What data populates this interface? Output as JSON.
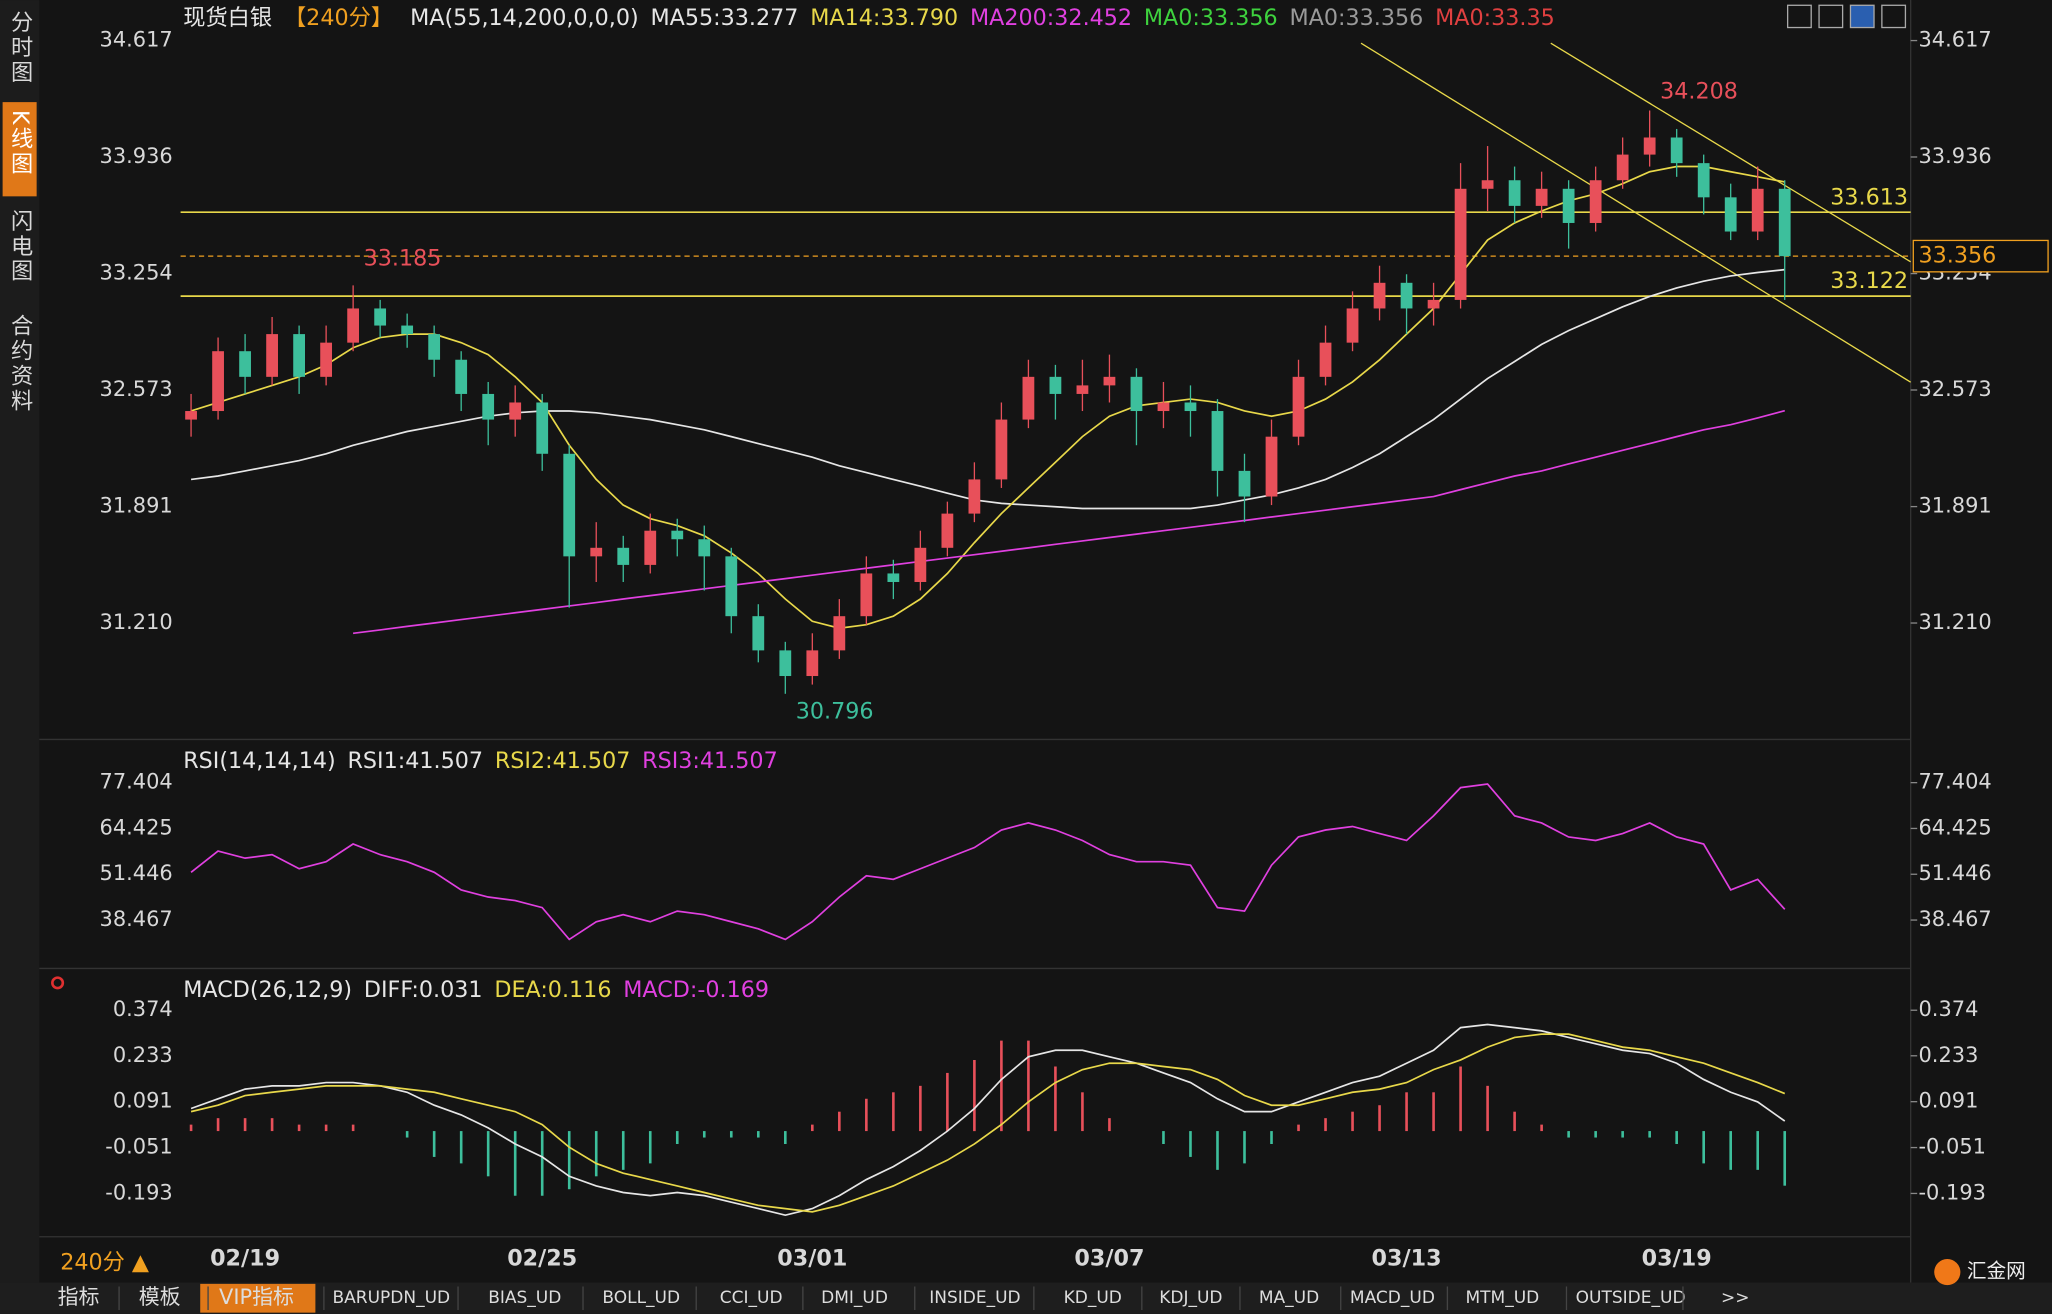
{
  "ui": {
    "tabs": [
      "分时图",
      "K线图",
      "闪电图",
      "合约资料"
    ],
    "period_button": "240分 ▲",
    "logo": "汇金网",
    "toolbar": [
      "指标",
      "模板",
      "VIP指标",
      "BARUPDN_UD",
      "BIAS_UD",
      "BOLL_UD",
      "CCI_UD",
      "DMI_UD",
      "INSIDE_UD",
      "KD_UD",
      "KDJ_UD",
      "MA_UD",
      "MACD_UD",
      "MTM_UD",
      "OUTSIDE_UD",
      ">>"
    ]
  },
  "chart_data": [
    {
      "type": "candlestick",
      "title": "现货白银",
      "period": "【240分】",
      "indicator": "MA(55,14,200,0,0,0)",
      "up_color": "#e8505a",
      "down_color": "#3dbf9c",
      "categories": [
        null,
        null,
        "02/19",
        null,
        null,
        null,
        null,
        null,
        null,
        null,
        null,
        null,
        null,
        "02/25",
        null,
        null,
        null,
        null,
        null,
        null,
        null,
        null,
        null,
        "03/01",
        null,
        null,
        null,
        null,
        null,
        null,
        null,
        null,
        null,
        null,
        "03/07",
        null,
        null,
        null,
        null,
        null,
        null,
        null,
        null,
        null,
        null,
        "03/13",
        null,
        null,
        null,
        null,
        null,
        null,
        null,
        null,
        null,
        "03/19",
        null,
        null,
        null,
        null
      ],
      "candles": [
        [
          32.4,
          32.55,
          32.3,
          32.45
        ],
        [
          32.45,
          32.88,
          32.4,
          32.8
        ],
        [
          32.8,
          32.9,
          32.55,
          32.65
        ],
        [
          32.65,
          33.0,
          32.6,
          32.9
        ],
        [
          32.9,
          32.95,
          32.55,
          32.65
        ],
        [
          32.65,
          32.95,
          32.6,
          32.85
        ],
        [
          32.85,
          33.185,
          32.8,
          33.05
        ],
        [
          33.05,
          33.1,
          32.88,
          32.95
        ],
        [
          32.95,
          33.02,
          32.82,
          32.9
        ],
        [
          32.9,
          32.95,
          32.65,
          32.75
        ],
        [
          32.75,
          32.8,
          32.45,
          32.55
        ],
        [
          32.55,
          32.62,
          32.25,
          32.4
        ],
        [
          32.4,
          32.6,
          32.3,
          32.5
        ],
        [
          32.5,
          32.55,
          32.1,
          32.2
        ],
        [
          32.2,
          32.25,
          31.3,
          31.6
        ],
        [
          31.6,
          31.8,
          31.45,
          31.65
        ],
        [
          31.65,
          31.72,
          31.45,
          31.55
        ],
        [
          31.55,
          31.85,
          31.5,
          31.75
        ],
        [
          31.75,
          31.82,
          31.6,
          31.7
        ],
        [
          31.7,
          31.78,
          31.4,
          31.6
        ],
        [
          31.6,
          31.65,
          31.15,
          31.25
        ],
        [
          31.25,
          31.32,
          30.98,
          31.05
        ],
        [
          31.05,
          31.1,
          30.796,
          30.9
        ],
        [
          30.9,
          31.15,
          30.85,
          31.05
        ],
        [
          31.05,
          31.35,
          31.0,
          31.25
        ],
        [
          31.25,
          31.6,
          31.2,
          31.5
        ],
        [
          31.5,
          31.58,
          31.35,
          31.45
        ],
        [
          31.45,
          31.75,
          31.4,
          31.65
        ],
        [
          31.65,
          31.92,
          31.6,
          31.85
        ],
        [
          31.85,
          32.15,
          31.8,
          32.05
        ],
        [
          32.05,
          32.5,
          32.0,
          32.4
        ],
        [
          32.4,
          32.75,
          32.35,
          32.65
        ],
        [
          32.65,
          32.72,
          32.4,
          32.55
        ],
        [
          32.55,
          32.75,
          32.45,
          32.6
        ],
        [
          32.6,
          32.78,
          32.5,
          32.65
        ],
        [
          32.65,
          32.7,
          32.25,
          32.45
        ],
        [
          32.45,
          32.62,
          32.35,
          32.5
        ],
        [
          32.5,
          32.6,
          32.3,
          32.45
        ],
        [
          32.45,
          32.52,
          31.95,
          32.1
        ],
        [
          32.1,
          32.2,
          31.8,
          31.95
        ],
        [
          31.95,
          32.4,
          31.9,
          32.3
        ],
        [
          32.3,
          32.75,
          32.25,
          32.65
        ],
        [
          32.65,
          32.95,
          32.6,
          32.85
        ],
        [
          32.85,
          33.15,
          32.8,
          33.05
        ],
        [
          33.05,
          33.3,
          32.98,
          33.2
        ],
        [
          33.2,
          33.25,
          32.9,
          33.05
        ],
        [
          33.05,
          33.2,
          32.95,
          33.1
        ],
        [
          33.1,
          33.9,
          33.05,
          33.75
        ],
        [
          33.75,
          34.0,
          33.62,
          33.8
        ],
        [
          33.8,
          33.88,
          33.55,
          33.65
        ],
        [
          33.65,
          33.85,
          33.58,
          33.75
        ],
        [
          33.75,
          33.8,
          33.4,
          33.55
        ],
        [
          33.55,
          33.88,
          33.5,
          33.8
        ],
        [
          33.8,
          34.05,
          33.75,
          33.95
        ],
        [
          33.95,
          34.208,
          33.88,
          34.05
        ],
        [
          34.05,
          34.1,
          33.82,
          33.9
        ],
        [
          33.9,
          33.95,
          33.6,
          33.7
        ],
        [
          33.7,
          33.78,
          33.45,
          33.5
        ],
        [
          33.5,
          33.88,
          33.45,
          33.75
        ],
        [
          33.75,
          33.8,
          33.1,
          33.356
        ]
      ],
      "series": [
        {
          "name": "MA55:33.277",
          "color": "#e6e6e6",
          "values": [
            32.05,
            32.07,
            32.1,
            32.13,
            32.16,
            32.2,
            32.25,
            32.29,
            32.33,
            32.36,
            32.39,
            32.42,
            32.44,
            32.45,
            32.45,
            32.44,
            32.42,
            32.4,
            32.37,
            32.34,
            32.3,
            32.26,
            32.22,
            32.18,
            32.13,
            32.09,
            32.05,
            32.01,
            31.97,
            31.93,
            31.91,
            31.9,
            31.89,
            31.88,
            31.88,
            31.88,
            31.88,
            31.88,
            31.9,
            31.93,
            31.96,
            32.0,
            32.05,
            32.12,
            32.2,
            32.3,
            32.4,
            32.52,
            32.64,
            32.74,
            32.84,
            32.92,
            32.99,
            33.06,
            33.12,
            33.17,
            33.21,
            33.24,
            33.26,
            33.277
          ]
        },
        {
          "name": "MA14:33.790",
          "color": "#e8d84a",
          "values": [
            32.45,
            32.5,
            32.55,
            32.6,
            32.65,
            32.72,
            32.82,
            32.88,
            32.9,
            32.9,
            32.85,
            32.78,
            32.65,
            32.5,
            32.25,
            32.05,
            31.9,
            31.82,
            31.78,
            31.72,
            31.62,
            31.5,
            31.35,
            31.22,
            31.18,
            31.2,
            31.25,
            31.35,
            31.5,
            31.68,
            31.85,
            32.0,
            32.15,
            32.3,
            32.42,
            32.48,
            32.5,
            32.52,
            32.5,
            32.45,
            32.42,
            32.45,
            32.52,
            32.62,
            32.75,
            32.9,
            33.05,
            33.25,
            33.45,
            33.55,
            33.62,
            33.68,
            33.72,
            33.78,
            33.85,
            33.88,
            33.88,
            33.85,
            33.82,
            33.79
          ]
        },
        {
          "name": "MA200:32.452",
          "color": "#e040e0",
          "values": [
            null,
            null,
            null,
            null,
            null,
            null,
            31.15,
            31.17,
            31.19,
            31.21,
            31.23,
            31.25,
            31.27,
            31.29,
            31.31,
            31.33,
            31.35,
            31.37,
            31.39,
            31.41,
            31.43,
            31.45,
            31.47,
            31.49,
            31.51,
            31.53,
            31.55,
            31.57,
            31.59,
            31.61,
            31.63,
            31.65,
            31.67,
            31.69,
            31.71,
            31.73,
            31.75,
            31.77,
            31.79,
            31.81,
            31.83,
            31.85,
            31.87,
            31.89,
            31.91,
            31.93,
            31.95,
            31.99,
            32.03,
            32.07,
            32.1,
            32.14,
            32.18,
            32.22,
            32.26,
            32.3,
            32.34,
            32.37,
            32.41,
            32.452
          ]
        }
      ],
      "legend_extra": [
        {
          "name": "MA0:33.356",
          "color": "#3ed23e"
        },
        {
          "name": "MA0:33.356",
          "color": "#9a9a9a"
        },
        {
          "name": "MA0:33.35",
          "color": "#e04040"
        }
      ],
      "hlines": [
        {
          "value": 33.613,
          "color": "#e8d84a"
        },
        {
          "value": 33.122,
          "color": "#e8d84a"
        }
      ],
      "current_color": "#f0a020",
      "ylim": [
        30.529,
        34.854
      ],
      "yticks": [
        34.617,
        33.936,
        33.254,
        32.573,
        31.891,
        {
          "value": 31.21,
          "label": "31.210"
        }
      ]
    },
    {
      "type": "line",
      "title": "RSI(14,14,14)",
      "legend_extra": [
        {
          "name": "RSI1:41.507",
          "color": "#e6e6e6"
        },
        {
          "name": "RSI2:41.507",
          "color": "#e8d84a"
        }
      ],
      "series": [
        {
          "name": "RSI3:41.507",
          "color": "#e040e0",
          "values": [
            52,
            58,
            56,
            57,
            53,
            55,
            60,
            57,
            55,
            52,
            47,
            45,
            44,
            42,
            33,
            38,
            40,
            38,
            41,
            40,
            38,
            36,
            33,
            38,
            45,
            51,
            50,
            53,
            56,
            59,
            64,
            66,
            64,
            61,
            57,
            55,
            55,
            54,
            42,
            41,
            54,
            62,
            64,
            65,
            63,
            61,
            68,
            76,
            77,
            68,
            66,
            62,
            61,
            63,
            66,
            62,
            60,
            47,
            50,
            41.507
          ]
        }
      ],
      "ylim": [
        24.75,
        87.79
      ],
      "yticks": [
        77.404,
        64.425,
        51.446,
        38.467
      ]
    },
    {
      "type": "macd",
      "title": "MACD(26,12,9)",
      "up_color": "#e8505a",
      "down_color": "#3dbf9c",
      "series": [
        {
          "name": "DIFF:0.031",
          "color": "#e6e6e6",
          "values": [
            0.07,
            0.1,
            0.13,
            0.14,
            0.14,
            0.15,
            0.15,
            0.14,
            0.12,
            0.08,
            0.05,
            0.01,
            -0.04,
            -0.08,
            -0.14,
            -0.17,
            -0.19,
            -0.2,
            -0.19,
            -0.2,
            -0.22,
            -0.24,
            -0.26,
            -0.24,
            -0.2,
            -0.15,
            -0.11,
            -0.06,
            0.0,
            0.07,
            0.16,
            0.23,
            0.25,
            0.25,
            0.23,
            0.21,
            0.18,
            0.15,
            0.1,
            0.06,
            0.06,
            0.09,
            0.12,
            0.15,
            0.17,
            0.21,
            0.25,
            0.32,
            0.33,
            0.32,
            0.31,
            0.29,
            0.27,
            0.25,
            0.24,
            0.21,
            0.16,
            0.12,
            0.09,
            0.031
          ]
        },
        {
          "name": "DEA:0.116",
          "color": "#e8d84a",
          "values": [
            0.06,
            0.08,
            0.11,
            0.12,
            0.13,
            0.14,
            0.14,
            0.14,
            0.13,
            0.12,
            0.1,
            0.08,
            0.06,
            0.02,
            -0.05,
            -0.1,
            -0.13,
            -0.15,
            -0.17,
            -0.19,
            -0.21,
            -0.23,
            -0.24,
            -0.25,
            -0.23,
            -0.2,
            -0.17,
            -0.13,
            -0.09,
            -0.04,
            0.02,
            0.09,
            0.15,
            0.19,
            0.21,
            0.21,
            0.2,
            0.19,
            0.16,
            0.11,
            0.08,
            0.08,
            0.1,
            0.12,
            0.13,
            0.15,
            0.19,
            0.22,
            0.26,
            0.29,
            0.3,
            0.3,
            0.28,
            0.26,
            0.25,
            0.23,
            0.21,
            0.18,
            0.15,
            0.116
          ]
        }
      ],
      "histogram": {
        "name": "MACD:-0.169",
        "color": "#e040e0",
        "values": [
          0.02,
          0.04,
          0.04,
          0.04,
          0.02,
          0.02,
          0.02,
          0.0,
          -0.02,
          -0.08,
          -0.1,
          -0.14,
          -0.2,
          -0.2,
          -0.18,
          -0.14,
          -0.12,
          -0.1,
          -0.04,
          -0.02,
          -0.02,
          -0.02,
          -0.04,
          0.02,
          0.06,
          0.1,
          0.12,
          0.14,
          0.18,
          0.22,
          0.28,
          0.28,
          0.2,
          0.12,
          0.04,
          0.0,
          -0.04,
          -0.08,
          -0.12,
          -0.1,
          -0.04,
          0.02,
          0.04,
          0.06,
          0.08,
          0.12,
          0.12,
          0.2,
          0.14,
          0.06,
          0.02,
          -0.02,
          -0.02,
          -0.02,
          -0.02,
          -0.04,
          -0.1,
          -0.12,
          -0.12,
          -0.169
        ]
      },
      "ylim": [
        -0.327,
        0.483
      ],
      "yticks": [
        0.374,
        0.233,
        0.091,
        -0.051,
        -0.193
      ]
    }
  ]
}
